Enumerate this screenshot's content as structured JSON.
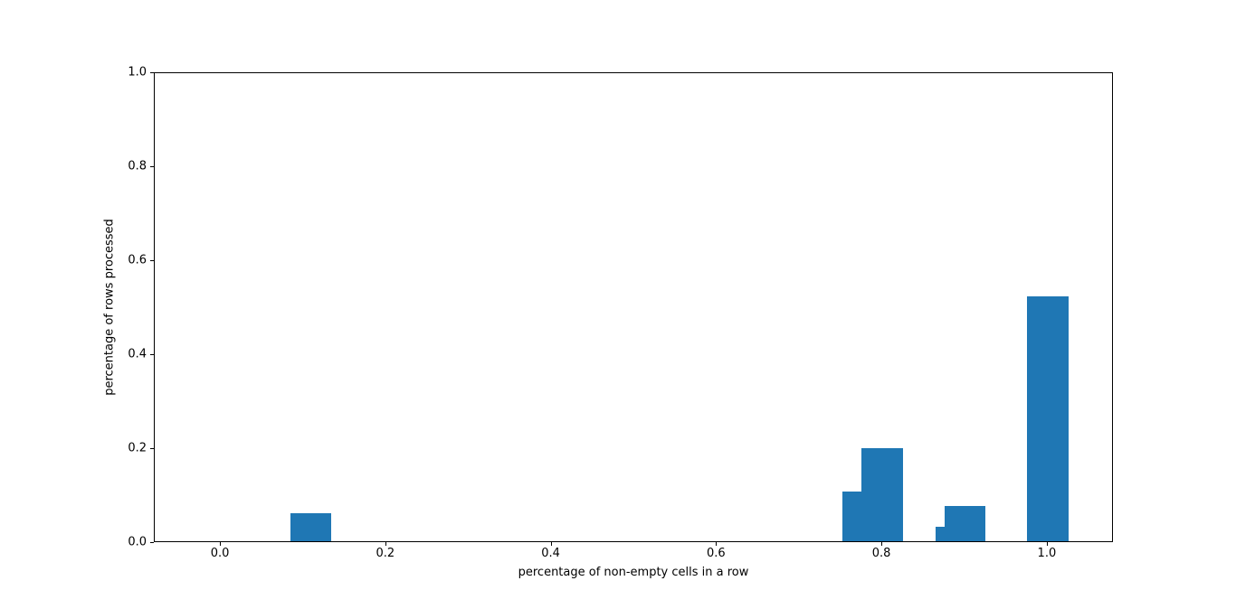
{
  "chart_data": {
    "type": "bar",
    "title": "",
    "xlabel": "percentage of non-empty cells in a row",
    "ylabel": "percentage of rows processed",
    "xlim": [
      -0.08,
      1.08
    ],
    "ylim": [
      0.0,
      1.0
    ],
    "grid": false,
    "legend": null,
    "bar_color": "#1f77b4",
    "bar_width": 0.05,
    "bars": [
      {
        "x": 0.11,
        "height": 0.062
      },
      {
        "x": 0.778,
        "height": 0.107
      },
      {
        "x": 0.801,
        "height": 0.2
      },
      {
        "x": 0.89,
        "height": 0.032
      },
      {
        "x": 0.901,
        "height": 0.077
      },
      {
        "x": 1.001,
        "height": 0.523
      }
    ],
    "xticks": [
      0.0,
      0.2,
      0.4,
      0.6,
      0.8,
      1.0
    ],
    "xtick_labels": [
      "0.0",
      "0.2",
      "0.4",
      "0.6",
      "0.8",
      "1.0"
    ],
    "yticks": [
      0.0,
      0.2,
      0.4,
      0.6,
      0.8,
      1.0
    ],
    "ytick_labels": [
      "0.0",
      "0.2",
      "0.4",
      "0.6",
      "0.8",
      "1.0"
    ]
  }
}
